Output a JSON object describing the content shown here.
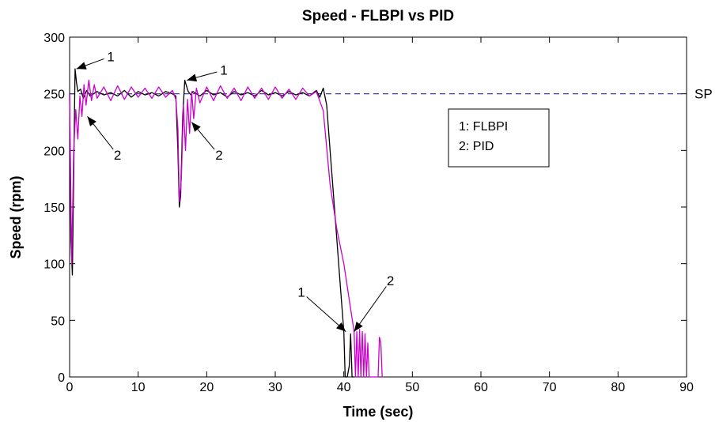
{
  "chart_data": {
    "type": "line",
    "title": "Speed - FLBPI vs PID",
    "xlabel": "Time (sec)",
    "ylabel": "Speed (rpm)",
    "xlim": [
      0,
      90
    ],
    "ylim": [
      0,
      300
    ],
    "xticks": [
      0,
      10,
      20,
      30,
      40,
      50,
      60,
      70,
      80,
      90
    ],
    "yticks": [
      0,
      50,
      100,
      150,
      200,
      250,
      300
    ],
    "grid": false,
    "legend_position": "upper-right inside box",
    "legend_lines": [
      "1: FLBPI",
      "2: PID"
    ],
    "setpoint": {
      "label": "SP",
      "value": 250,
      "color": "#2f2f8f",
      "style": "dashed"
    },
    "series": [
      {
        "name": "FLBPI",
        "tag": "1",
        "color": "#000000",
        "x": [
          0,
          0.2,
          0.4,
          0.6,
          0.8,
          1.0,
          1.2,
          1.6,
          2.0,
          2.5,
          3.0,
          4,
          5,
          6,
          7,
          8,
          9,
          10,
          11,
          12,
          13,
          14,
          15,
          15.5,
          15.8,
          16.0,
          16.2,
          16.5,
          16.8,
          17.0,
          17.3,
          17.7,
          18,
          19,
          20,
          21,
          22,
          23,
          24,
          25,
          26,
          27,
          28,
          29,
          30,
          31,
          32,
          33,
          34,
          35,
          36,
          36.5,
          37,
          37.5,
          38,
          38.5,
          39,
          39.5,
          40,
          40.2,
          40.5,
          40.8,
          41,
          41.2,
          41.5
        ],
        "y": [
          250,
          120,
          90,
          180,
          272,
          260,
          252,
          254,
          246,
          253,
          248,
          252,
          249,
          251,
          248,
          253,
          247,
          252,
          249,
          251,
          248,
          252,
          250,
          248,
          200,
          150,
          160,
          230,
          262,
          258,
          252,
          249,
          252,
          248,
          253,
          249,
          251,
          247,
          252,
          249,
          251,
          248,
          253,
          249,
          251,
          248,
          252,
          249,
          251,
          248,
          253,
          247,
          255,
          240,
          200,
          160,
          120,
          80,
          40,
          0,
          0,
          10,
          38,
          0,
          0
        ]
      },
      {
        "name": "PID",
        "tag": "2",
        "color": "#cc00cc",
        "x": [
          0,
          0.3,
          0.6,
          0.9,
          1.2,
          1.5,
          1.8,
          2.1,
          2.4,
          2.8,
          3.2,
          3.6,
          4,
          5,
          6,
          7,
          8,
          9,
          10,
          11,
          12,
          13,
          14,
          15,
          15.5,
          15.8,
          16.0,
          16.3,
          16.6,
          16.9,
          17.2,
          17.5,
          17.8,
          18.1,
          18.5,
          19,
          20,
          21,
          22,
          23,
          24,
          25,
          26,
          27,
          28,
          29,
          30,
          31,
          32,
          33,
          34,
          35,
          36,
          37,
          38,
          39,
          40,
          41,
          41.5,
          41.7,
          41.9,
          42.1,
          42.3,
          42.5,
          42.7,
          42.9,
          43.1,
          43.3,
          43.5,
          43.7,
          44,
          45,
          45.2,
          45.4,
          45.6,
          45.8
        ],
        "y": [
          250,
          100,
          200,
          236,
          210,
          248,
          230,
          258,
          240,
          262,
          244,
          258,
          246,
          256,
          244,
          257,
          245,
          256,
          247,
          255,
          246,
          256,
          247,
          253,
          245,
          220,
          155,
          175,
          240,
          200,
          245,
          215,
          252,
          228,
          255,
          242,
          256,
          244,
          257,
          246,
          255,
          244,
          256,
          246,
          255,
          245,
          256,
          246,
          254,
          245,
          255,
          248,
          252,
          235,
          170,
          130,
          100,
          60,
          40,
          0,
          40,
          0,
          42,
          0,
          40,
          0,
          38,
          0,
          30,
          0,
          0,
          0,
          35,
          30,
          0,
          0
        ]
      }
    ],
    "annotations": [
      {
        "text": "1",
        "series": "FLBPI",
        "point_x": 1.0,
        "point_y": 272,
        "label_x": 6.0,
        "label_y": 283
      },
      {
        "text": "2",
        "series": "PID",
        "point_x": 2.6,
        "point_y": 230,
        "label_x": 7.0,
        "label_y": 196
      },
      {
        "text": "1",
        "series": "FLBPI",
        "point_x": 17.1,
        "point_y": 262,
        "label_x": 22.5,
        "label_y": 271
      },
      {
        "text": "2",
        "series": "PID",
        "point_x": 17.8,
        "point_y": 225,
        "label_x": 21.8,
        "label_y": 196
      },
      {
        "text": "1",
        "series": "FLBPI",
        "point_x": 40.3,
        "point_y": 40,
        "label_x": 33.8,
        "label_y": 75
      },
      {
        "text": "2",
        "series": "PID",
        "point_x": 41.5,
        "point_y": 40,
        "label_x": 46.8,
        "label_y": 85
      }
    ]
  }
}
